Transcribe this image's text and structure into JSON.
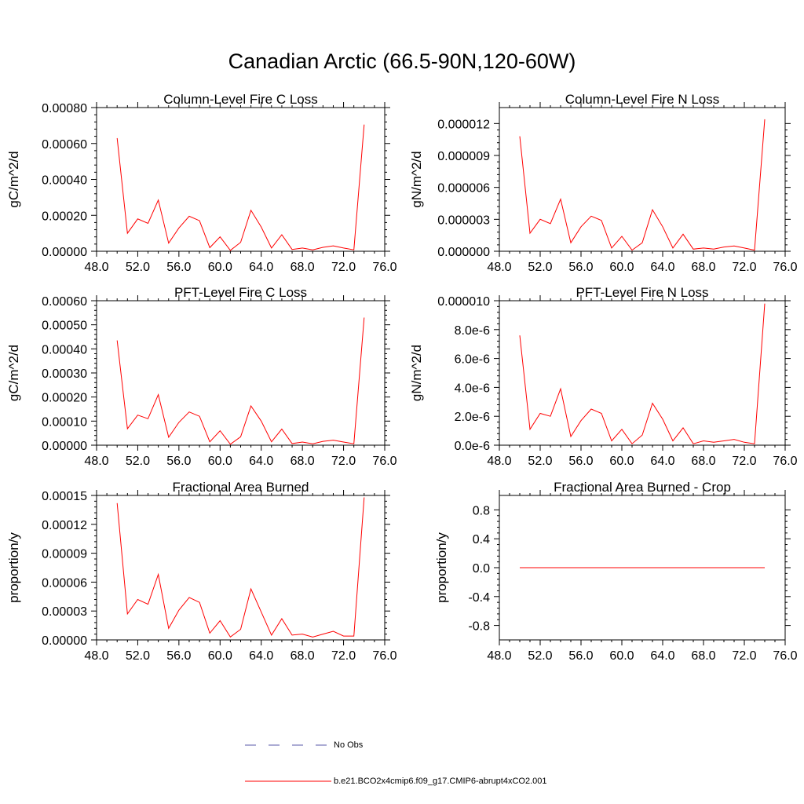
{
  "page": {
    "title": "Canadian Arctic (66.5-90N,120-60W)"
  },
  "colors": {
    "model_line": "#ff0000",
    "obs_line": "#5a5aa8",
    "axis": "#000000"
  },
  "legend": {
    "items": [
      {
        "label": "No Obs",
        "style": "dashed",
        "color": "#5a5aa8"
      },
      {
        "label": "b.e21.BCO2x4cmip6.f09_g17.CMIP6-abrupt4xCO2.001",
        "style": "solid",
        "color": "#ff0000"
      }
    ]
  },
  "chart_data": [
    {
      "type": "line",
      "title": "Column-Level Fire C Loss",
      "xlabel": "",
      "ylabel": "gC/m^2/d",
      "xlim": [
        48,
        76
      ],
      "ylim": [
        0,
        0.0008
      ],
      "x_ticks": [
        48,
        52,
        56,
        60,
        64,
        68,
        72,
        76
      ],
      "x_tick_labels": [
        "48.0",
        "52.0",
        "56.0",
        "60.0",
        "64.0",
        "68.0",
        "72.0",
        "76.0"
      ],
      "y_ticks": [
        0,
        0.0002,
        0.0004,
        0.0006,
        0.0008
      ],
      "y_tick_labels": [
        "0.00000",
        "0.00020",
        "0.00040",
        "0.00060",
        "0.00080"
      ],
      "x": [
        50,
        51,
        52,
        53,
        54,
        55,
        56,
        57,
        58,
        59,
        60,
        61,
        62,
        63,
        64,
        65,
        66,
        67,
        68,
        69,
        70,
        71,
        72,
        73,
        74
      ],
      "series": [
        {
          "color": "#ff0000",
          "values": [
            0.00063,
            0.0001,
            0.00018,
            0.000155,
            0.000285,
            4.5e-05,
            0.00013,
            0.000195,
            0.00017,
            2e-05,
            8e-05,
            5e-06,
            5e-05,
            0.000228,
            0.000135,
            1.8e-05,
            9.2e-05,
            1e-05,
            1.8e-05,
            8e-06,
            2.2e-05,
            3e-05,
            1.8e-05,
            8e-06,
            0.000705
          ]
        }
      ]
    },
    {
      "type": "line",
      "title": "Column-Level Fire N Loss",
      "xlabel": "",
      "ylabel": "gN/m^2/d",
      "xlim": [
        48,
        76
      ],
      "ylim": [
        0,
        1.35e-05
      ],
      "x_ticks": [
        48,
        52,
        56,
        60,
        64,
        68,
        72,
        76
      ],
      "x_tick_labels": [
        "48.0",
        "52.0",
        "56.0",
        "60.0",
        "64.0",
        "68.0",
        "72.0",
        "76.0"
      ],
      "y_ticks": [
        0,
        3e-06,
        6e-06,
        9e-06,
        1.2e-05
      ],
      "y_tick_labels": [
        "0.000000",
        "0.000003",
        "0.000006",
        "0.000009",
        "0.000012"
      ],
      "x": [
        50,
        51,
        52,
        53,
        54,
        55,
        56,
        57,
        58,
        59,
        60,
        61,
        62,
        63,
        64,
        65,
        66,
        67,
        68,
        69,
        70,
        71,
        72,
        73,
        74
      ],
      "series": [
        {
          "color": "#ff0000",
          "values": [
            1.08e-05,
            1.7e-06,
            3e-06,
            2.6e-06,
            4.9e-06,
            8e-07,
            2.3e-06,
            3.3e-06,
            2.9e-06,
            3e-07,
            1.4e-06,
            1e-07,
            8e-07,
            3.9e-06,
            2.3e-06,
            3e-07,
            1.6e-06,
            2e-07,
            3e-07,
            2e-07,
            4e-07,
            5e-07,
            3e-07,
            1e-07,
            1.24e-05
          ]
        }
      ]
    },
    {
      "type": "line",
      "title": "PFT-Level Fire C Loss",
      "xlabel": "",
      "ylabel": "gC/m^2/d",
      "xlim": [
        48,
        76
      ],
      "ylim": [
        0,
        0.0006
      ],
      "x_ticks": [
        48,
        52,
        56,
        60,
        64,
        68,
        72,
        76
      ],
      "x_tick_labels": [
        "48.0",
        "52.0",
        "56.0",
        "60.0",
        "64.0",
        "68.0",
        "72.0",
        "76.0"
      ],
      "y_ticks": [
        0,
        0.0001,
        0.0002,
        0.0003,
        0.0004,
        0.0005,
        0.0006
      ],
      "y_tick_labels": [
        "0.00000",
        "0.00010",
        "0.00020",
        "0.00030",
        "0.00040",
        "0.00050",
        "0.00060"
      ],
      "x": [
        50,
        51,
        52,
        53,
        54,
        55,
        56,
        57,
        58,
        59,
        60,
        61,
        62,
        63,
        64,
        65,
        66,
        67,
        68,
        69,
        70,
        71,
        72,
        73,
        74
      ],
      "series": [
        {
          "color": "#ff0000",
          "values": [
            0.000435,
            6.8e-05,
            0.000125,
            0.00011,
            0.00021,
            3.3e-05,
            9.5e-05,
            0.000138,
            0.00012,
            1.4e-05,
            6e-05,
            4e-06,
            3.5e-05,
            0.000163,
            0.0001,
            1.4e-05,
            6.7e-05,
            7e-06,
            1.3e-05,
            6e-06,
            1.6e-05,
            2.1e-05,
            1.3e-05,
            6e-06,
            0.00053
          ]
        }
      ]
    },
    {
      "type": "line",
      "title": "PFT-Level Fire N Loss",
      "xlabel": "",
      "ylabel": "gN/m^2/d",
      "xlim": [
        48,
        76
      ],
      "ylim": [
        0,
        1e-05
      ],
      "x_ticks": [
        48,
        52,
        56,
        60,
        64,
        68,
        72,
        76
      ],
      "x_tick_labels": [
        "48.0",
        "52.0",
        "56.0",
        "60.0",
        "64.0",
        "68.0",
        "72.0",
        "76.0"
      ],
      "y_ticks": [
        0,
        2e-06,
        4e-06,
        6e-06,
        8e-06,
        1e-05
      ],
      "y_tick_labels": [
        "0.0e-6",
        "2.0e-6",
        "4.0e-6",
        "6.0e-6",
        "8.0e-6",
        "0.000010"
      ],
      "x": [
        50,
        51,
        52,
        53,
        54,
        55,
        56,
        57,
        58,
        59,
        60,
        61,
        62,
        63,
        64,
        65,
        66,
        67,
        68,
        69,
        70,
        71,
        72,
        73,
        74
      ],
      "series": [
        {
          "color": "#ff0000",
          "values": [
            7.6e-06,
            1.1e-06,
            2.2e-06,
            2e-06,
            3.9e-06,
            6e-07,
            1.7e-06,
            2.5e-06,
            2.2e-06,
            3e-07,
            1.1e-06,
            1e-07,
            7e-07,
            2.9e-06,
            1.8e-06,
            3e-07,
            1.2e-06,
            1e-07,
            3e-07,
            2e-07,
            3e-07,
            4e-07,
            2e-07,
            1e-07,
            9.8e-06
          ]
        }
      ]
    },
    {
      "type": "line",
      "title": "Fractional Area Burned",
      "xlabel": "",
      "ylabel": "proportion/y",
      "xlim": [
        48,
        76
      ],
      "ylim": [
        0,
        0.00015
      ],
      "x_ticks": [
        48,
        52,
        56,
        60,
        64,
        68,
        72,
        76
      ],
      "x_tick_labels": [
        "48.0",
        "52.0",
        "56.0",
        "60.0",
        "64.0",
        "68.0",
        "72.0",
        "76.0"
      ],
      "y_ticks": [
        0,
        3e-05,
        6e-05,
        9e-05,
        0.00012,
        0.00015
      ],
      "y_tick_labels": [
        "0.00000",
        "0.00003",
        "0.00006",
        "0.00009",
        "0.00012",
        "0.00015"
      ],
      "x": [
        50,
        51,
        52,
        53,
        54,
        55,
        56,
        57,
        58,
        59,
        60,
        61,
        62,
        63,
        64,
        65,
        66,
        67,
        68,
        69,
        70,
        71,
        72,
        73,
        74
      ],
      "series": [
        {
          "color": "#ff0000",
          "values": [
            0.000142,
            2.7e-05,
            4.2e-05,
            3.7e-05,
            6.8e-05,
            1.2e-05,
            3.1e-05,
            4.4e-05,
            3.9e-05,
            7e-06,
            2e-05,
            3e-06,
            1.1e-05,
            5.3e-05,
            2.9e-05,
            5e-06,
            2.2e-05,
            5e-06,
            6e-06,
            3e-06,
            6e-06,
            9e-06,
            4e-06,
            4e-06,
            0.000148
          ]
        }
      ]
    },
    {
      "type": "line",
      "title": "Fractional Area Burned - Crop",
      "xlabel": "",
      "ylabel": "proportion/y",
      "xlim": [
        48,
        76
      ],
      "ylim": [
        -1,
        1
      ],
      "x_ticks": [
        48,
        52,
        56,
        60,
        64,
        68,
        72,
        76
      ],
      "x_tick_labels": [
        "48.0",
        "52.0",
        "56.0",
        "60.0",
        "64.0",
        "68.0",
        "72.0",
        "76.0"
      ],
      "y_ticks": [
        -0.8,
        -0.4,
        0,
        0.4,
        0.8
      ],
      "y_tick_labels": [
        "-0.8",
        "-0.4",
        "0.0",
        "0.4",
        "0.8"
      ],
      "x": [
        50,
        51,
        52,
        53,
        54,
        55,
        56,
        57,
        58,
        59,
        60,
        61,
        62,
        63,
        64,
        65,
        66,
        67,
        68,
        69,
        70,
        71,
        72,
        73,
        74
      ],
      "series": [
        {
          "color": "#ff0000",
          "values": [
            0,
            0,
            0,
            0,
            0,
            0,
            0,
            0,
            0,
            0,
            0,
            0,
            0,
            0,
            0,
            0,
            0,
            0,
            0,
            0,
            0,
            0,
            0,
            0,
            0
          ]
        }
      ]
    }
  ]
}
